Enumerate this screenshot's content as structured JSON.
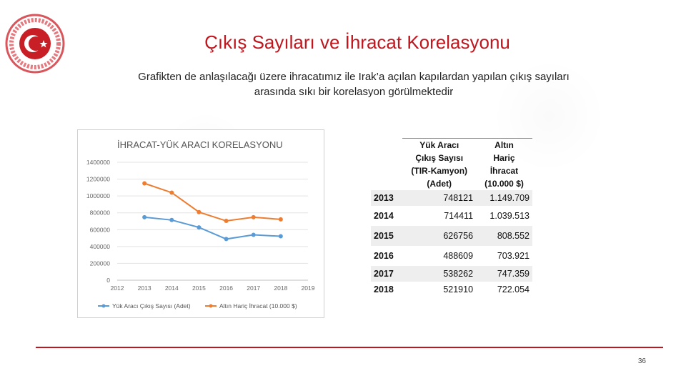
{
  "slide": {
    "title": "Çıkış Sayıları ve İhracat Korelasyonu",
    "subtitle_line1": "Grafikten de anlaşılacağı üzere ihracatımız ile Irak’a açılan kapılardan yapılan çıkış sayıları",
    "subtitle_line2": "arasında sıkı bir korelasyon görülmektedir",
    "page_number": "36",
    "accent_color": "#c0171f"
  },
  "table": {
    "headers": [
      "",
      "Yük Aracı Çıkış Sayısı (TIR-Kamyon) (Adet)",
      "Altın Hariç İhracat (10.000 $)"
    ],
    "header_col1_lines": [
      "Yük Aracı",
      "Çıkış Sayısı",
      "(TIR-Kamyon)",
      "(Adet)"
    ],
    "header_col2_lines": [
      "Altın",
      "Hariç",
      "İhracat",
      "(10.000 $)"
    ],
    "rows": [
      {
        "year": "2013",
        "trucks": "748121",
        "exports": "1.149.709"
      },
      {
        "year": "2014",
        "trucks": "714411",
        "exports": "1.039.513"
      },
      {
        "year": "2015",
        "trucks": "626756",
        "exports": "808.552"
      },
      {
        "year": "2016",
        "trucks": "488609",
        "exports": "703.921"
      },
      {
        "year": "2017",
        "trucks": "538262",
        "exports": "747.359"
      },
      {
        "year": "2018",
        "trucks": "521910",
        "exports": "722.054"
      }
    ]
  },
  "chart_data": {
    "type": "line",
    "title": "İHRACAT-YÜK ARACI KORELASYONU",
    "x_ticks": [
      "2012",
      "2013",
      "2014",
      "2015",
      "2016",
      "2017",
      "2018",
      "2019"
    ],
    "x": [
      2013,
      2014,
      2015,
      2016,
      2017,
      2018
    ],
    "xlim": [
      2012,
      2019
    ],
    "ylim": [
      0,
      1400000
    ],
    "y_ticks": [
      "0",
      "200000",
      "400000",
      "600000",
      "800000",
      "1000000",
      "1200000",
      "1400000"
    ],
    "y_tick_values": [
      0,
      200000,
      400000,
      600000,
      800000,
      1000000,
      1200000,
      1400000
    ],
    "series": [
      {
        "name": "Yük Aracı Çıkış Sayısı (Adet)",
        "color": "#5b9bd5",
        "values": [
          748121,
          714411,
          626756,
          488609,
          538262,
          521910
        ]
      },
      {
        "name": "Altın Hariç İhracat (10.000 $)",
        "color": "#ed7d31",
        "values": [
          1149709,
          1039513,
          808552,
          703921,
          747359,
          722054
        ]
      }
    ],
    "grid": true,
    "legend": "bottom"
  }
}
